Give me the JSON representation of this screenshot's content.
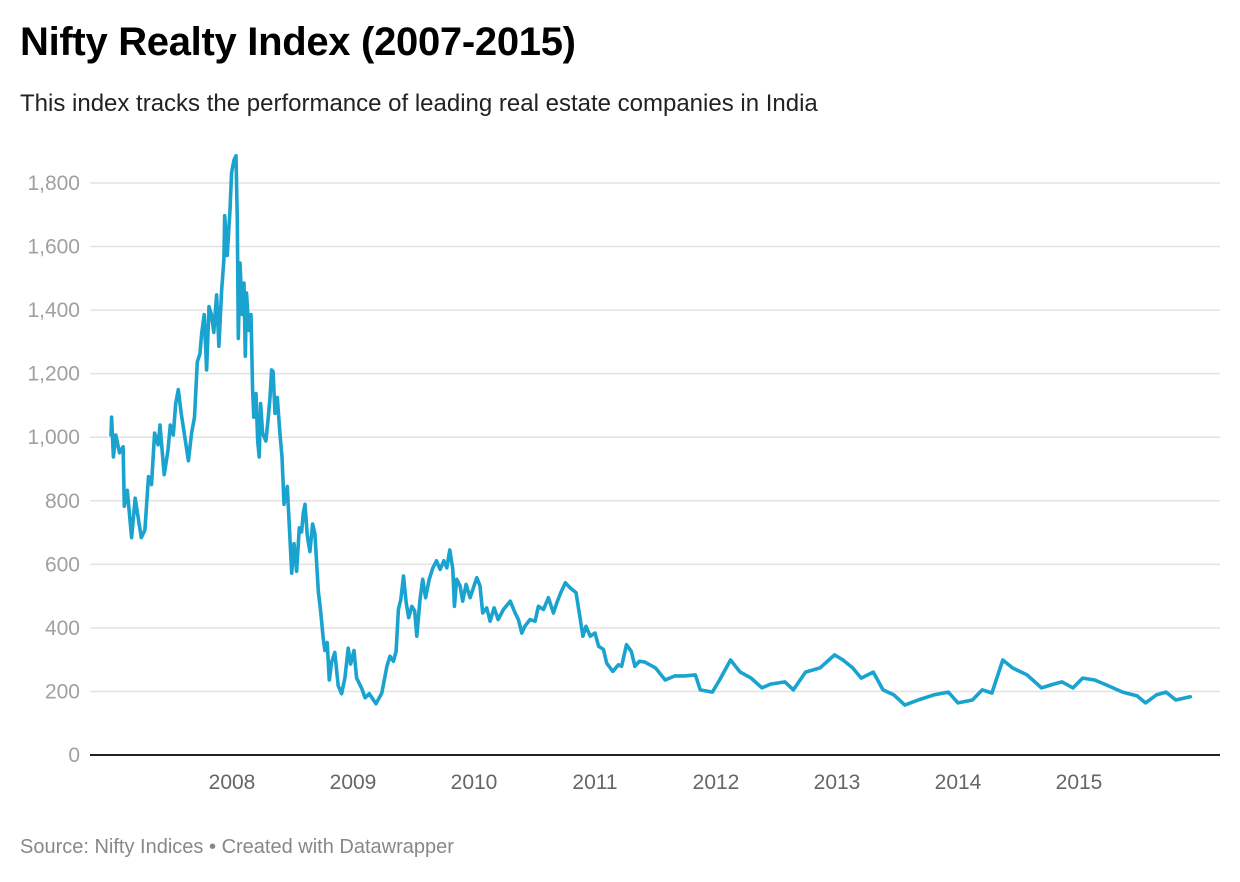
{
  "title": "Nifty Realty Index (2007-2015)",
  "subtitle": "This index tracks the performance of leading real estate companies in India",
  "footer": {
    "source": "Source: Nifty Indices",
    "separator": "•",
    "credit": "Created with Datawrapper"
  },
  "chart_data": {
    "type": "line",
    "title": "Nifty Realty Index (2007-2015)",
    "xlabel": "",
    "ylabel": "",
    "ylim": [
      0,
      1900
    ],
    "xlim": [
      2007.0,
      2016.0
    ],
    "grid": true,
    "color": "#1aa3cf",
    "y_ticks": [
      0,
      200,
      400,
      600,
      800,
      1000,
      1200,
      1400,
      1600,
      1800
    ],
    "y_tick_labels": [
      "0",
      "200",
      "400",
      "600",
      "800",
      "1,000",
      "1,200",
      "1,400",
      "1,600",
      "1,800"
    ],
    "x_ticks": [
      2008,
      2009,
      2010,
      2011,
      2012,
      2013,
      2014,
      2015
    ],
    "x_tick_labels": [
      "2008",
      "2009",
      "2010",
      "2011",
      "2012",
      "2013",
      "2014",
      "2015"
    ],
    "series": [
      {
        "name": "Nifty Realty",
        "points": [
          [
            2007.0,
            1007
          ],
          [
            2007.005,
            1063
          ],
          [
            2007.02,
            938
          ],
          [
            2007.04,
            1007
          ],
          [
            2007.07,
            951
          ],
          [
            2007.1,
            970
          ],
          [
            2007.11,
            783
          ],
          [
            2007.135,
            833
          ],
          [
            2007.17,
            684
          ],
          [
            2007.2,
            808
          ],
          [
            2007.225,
            746
          ],
          [
            2007.25,
            684
          ],
          [
            2007.28,
            708
          ],
          [
            2007.31,
            876
          ],
          [
            2007.335,
            851
          ],
          [
            2007.36,
            1013
          ],
          [
            2007.39,
            976
          ],
          [
            2007.405,
            1038
          ],
          [
            2007.44,
            882
          ],
          [
            2007.47,
            957
          ],
          [
            2007.49,
            1038
          ],
          [
            2007.515,
            1007
          ],
          [
            2007.535,
            1106
          ],
          [
            2007.556,
            1150
          ],
          [
            2007.58,
            1075
          ],
          [
            2007.61,
            1001
          ],
          [
            2007.64,
            926
          ],
          [
            2007.666,
            1013
          ],
          [
            2007.69,
            1063
          ],
          [
            2007.713,
            1237
          ],
          [
            2007.735,
            1262
          ],
          [
            2007.75,
            1330
          ],
          [
            2007.77,
            1386
          ],
          [
            2007.79,
            1212
          ],
          [
            2007.81,
            1411
          ],
          [
            2007.83,
            1386
          ],
          [
            2007.85,
            1330
          ],
          [
            2007.873,
            1448
          ],
          [
            2007.892,
            1286
          ],
          [
            2007.914,
            1460
          ],
          [
            2007.933,
            1560
          ],
          [
            2007.94,
            1697
          ],
          [
            2007.96,
            1572
          ],
          [
            2007.983,
            1709
          ],
          [
            2007.997,
            1833
          ],
          [
            2008.016,
            1871
          ],
          [
            2008.033,
            1886
          ],
          [
            2008.044,
            1684
          ],
          [
            2008.052,
            1311
          ],
          [
            2008.066,
            1548
          ],
          [
            2008.085,
            1386
          ],
          [
            2008.099,
            1485
          ],
          [
            2008.11,
            1255
          ],
          [
            2008.12,
            1454
          ],
          [
            2008.14,
            1336
          ],
          [
            2008.157,
            1386
          ],
          [
            2008.17,
            1150
          ],
          [
            2008.18,
            1063
          ],
          [
            2008.198,
            1137
          ],
          [
            2008.212,
            988
          ],
          [
            2008.225,
            938
          ],
          [
            2008.236,
            1106
          ],
          [
            2008.253,
            1013
          ],
          [
            2008.28,
            988
          ],
          [
            2008.3,
            1063
          ],
          [
            2008.314,
            1125
          ],
          [
            2008.327,
            1212
          ],
          [
            2008.34,
            1206
          ],
          [
            2008.355,
            1075
          ],
          [
            2008.374,
            1125
          ],
          [
            2008.396,
            1013
          ],
          [
            2008.413,
            938
          ],
          [
            2008.43,
            789
          ],
          [
            2008.457,
            845
          ],
          [
            2008.474,
            715
          ],
          [
            2008.493,
            572
          ],
          [
            2008.512,
            665
          ],
          [
            2008.534,
            578
          ],
          [
            2008.556,
            715
          ],
          [
            2008.575,
            702
          ],
          [
            2008.59,
            764
          ],
          [
            2008.603,
            789
          ],
          [
            2008.622,
            690
          ],
          [
            2008.644,
            640
          ],
          [
            2008.666,
            727
          ],
          [
            2008.685,
            696
          ],
          [
            2008.713,
            516
          ],
          [
            2008.732,
            454
          ],
          [
            2008.754,
            367
          ],
          [
            2008.768,
            329
          ],
          [
            2008.787,
            354
          ],
          [
            2008.804,
            236
          ],
          [
            2008.823,
            292
          ],
          [
            2008.85,
            323
          ],
          [
            2008.878,
            218
          ],
          [
            2008.906,
            193
          ],
          [
            2008.933,
            242
          ],
          [
            2008.96,
            336
          ],
          [
            2008.98,
            286
          ],
          [
            2009.008,
            329
          ],
          [
            2009.03,
            242
          ],
          [
            2009.07,
            211
          ],
          [
            2009.1,
            180
          ],
          [
            2009.135,
            193
          ],
          [
            2009.19,
            161
          ],
          [
            2009.238,
            195
          ],
          [
            2009.28,
            279
          ],
          [
            2009.306,
            311
          ],
          [
            2009.334,
            295
          ],
          [
            2009.356,
            326
          ],
          [
            2009.375,
            458
          ],
          [
            2009.395,
            489
          ],
          [
            2009.417,
            563
          ],
          [
            2009.44,
            479
          ],
          [
            2009.46,
            432
          ],
          [
            2009.486,
            468
          ],
          [
            2009.51,
            453
          ],
          [
            2009.527,
            374
          ],
          [
            2009.554,
            489
          ],
          [
            2009.576,
            553
          ],
          [
            2009.6,
            495
          ],
          [
            2009.63,
            553
          ],
          [
            2009.66,
            589
          ],
          [
            2009.69,
            611
          ],
          [
            2009.72,
            584
          ],
          [
            2009.75,
            611
          ],
          [
            2009.775,
            589
          ],
          [
            2009.8,
            645
          ],
          [
            2009.825,
            584
          ],
          [
            2009.838,
            468
          ],
          [
            2009.857,
            553
          ],
          [
            2009.885,
            532
          ],
          [
            2009.907,
            484
          ],
          [
            2009.935,
            537
          ],
          [
            2009.968,
            495
          ],
          [
            2009.995,
            526
          ],
          [
            2010.023,
            558
          ],
          [
            2010.05,
            532
          ],
          [
            2010.072,
            447
          ],
          [
            2010.105,
            463
          ],
          [
            2010.133,
            421
          ],
          [
            2010.166,
            463
          ],
          [
            2010.2,
            426
          ],
          [
            2010.243,
            458
          ],
          [
            2010.3,
            484
          ],
          [
            2010.34,
            447
          ],
          [
            2010.367,
            426
          ],
          [
            2010.395,
            384
          ],
          [
            2010.42,
            405
          ],
          [
            2010.463,
            426
          ],
          [
            2010.505,
            421
          ],
          [
            2010.532,
            468
          ],
          [
            2010.574,
            458
          ],
          [
            2010.615,
            495
          ],
          [
            2010.656,
            447
          ],
          [
            2010.684,
            479
          ],
          [
            2010.717,
            511
          ],
          [
            2010.755,
            542
          ],
          [
            2010.794,
            526
          ],
          [
            2010.843,
            511
          ],
          [
            2010.87,
            447
          ],
          [
            2010.9,
            374
          ],
          [
            2010.926,
            405
          ],
          [
            2010.96,
            374
          ],
          [
            2011.0,
            384
          ],
          [
            2011.03,
            342
          ],
          [
            2011.07,
            332
          ],
          [
            2011.097,
            289
          ],
          [
            2011.147,
            263
          ],
          [
            2011.193,
            284
          ],
          [
            2011.22,
            279
          ],
          [
            2011.26,
            347
          ],
          [
            2011.3,
            326
          ],
          [
            2011.33,
            279
          ],
          [
            2011.367,
            295
          ],
          [
            2011.41,
            293
          ],
          [
            2011.5,
            274
          ],
          [
            2011.58,
            236
          ],
          [
            2011.66,
            249
          ],
          [
            2011.74,
            249
          ],
          [
            2011.83,
            252
          ],
          [
            2011.87,
            205
          ],
          [
            2011.97,
            198
          ],
          [
            2012.03,
            236
          ],
          [
            2012.12,
            299
          ],
          [
            2012.2,
            261
          ],
          [
            2012.29,
            242
          ],
          [
            2012.38,
            211
          ],
          [
            2012.45,
            223
          ],
          [
            2012.57,
            230
          ],
          [
            2012.64,
            205
          ],
          [
            2012.74,
            261
          ],
          [
            2012.86,
            274
          ],
          [
            2012.98,
            315
          ],
          [
            2013.05,
            299
          ],
          [
            2013.13,
            274
          ],
          [
            2013.2,
            242
          ],
          [
            2013.3,
            261
          ],
          [
            2013.38,
            205
          ],
          [
            2013.47,
            189
          ],
          [
            2013.56,
            157
          ],
          [
            2013.67,
            173
          ],
          [
            2013.8,
            189
          ],
          [
            2013.92,
            198
          ],
          [
            2014.0,
            164
          ],
          [
            2014.12,
            173
          ],
          [
            2014.2,
            205
          ],
          [
            2014.28,
            195
          ],
          [
            2014.37,
            299
          ],
          [
            2014.45,
            274
          ],
          [
            2014.57,
            252
          ],
          [
            2014.69,
            211
          ],
          [
            2014.79,
            223
          ],
          [
            2014.86,
            230
          ],
          [
            2014.95,
            211
          ],
          [
            2015.03,
            242
          ],
          [
            2015.13,
            236
          ],
          [
            2015.23,
            220
          ],
          [
            2015.36,
            198
          ],
          [
            2015.48,
            186
          ],
          [
            2015.55,
            164
          ],
          [
            2015.64,
            189
          ],
          [
            2015.72,
            198
          ],
          [
            2015.8,
            173
          ],
          [
            2015.92,
            183
          ]
        ]
      }
    ]
  }
}
